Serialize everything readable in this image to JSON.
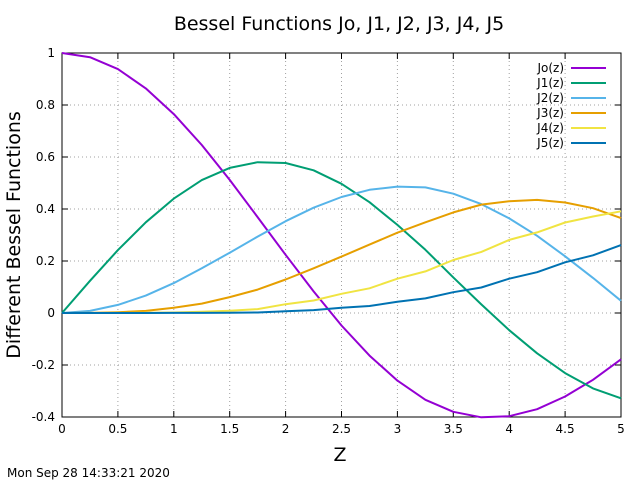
{
  "chart_data": {
    "type": "line",
    "title": "Bessel Functions Jo, J1, J2, J3, J4, J5",
    "xlabel": "Z",
    "ylabel": "Different Bessel Functions",
    "xlim": [
      0,
      5
    ],
    "ylim": [
      -0.4,
      1
    ],
    "x_ticks": [
      "0",
      "0.5",
      "1",
      "1.5",
      "2",
      "2.5",
      "3",
      "3.5",
      "4",
      "4.5",
      "5"
    ],
    "y_ticks": [
      "-0.4",
      "-0.2",
      "0",
      "0.2",
      "0.4",
      "0.6",
      "0.8",
      "1"
    ],
    "grid": true,
    "legend_position": "top-right",
    "x": [
      0,
      0.25,
      0.5,
      0.75,
      1,
      1.25,
      1.5,
      1.75,
      2,
      2.25,
      2.5,
      2.75,
      3,
      3.25,
      3.5,
      3.75,
      4,
      4.25,
      4.5,
      4.75,
      5
    ],
    "series": [
      {
        "name": "Jo(z)",
        "color": "#9400d3",
        "values": [
          1,
          0.984,
          0.938,
          0.864,
          0.765,
          0.646,
          0.512,
          0.369,
          0.224,
          0.083,
          -0.048,
          -0.164,
          -0.26,
          -0.334,
          -0.38,
          -0.401,
          -0.397,
          -0.37,
          -0.321,
          -0.257,
          -0.178
        ]
      },
      {
        "name": "J1(z)",
        "color": "#009e73",
        "values": [
          0,
          0.124,
          0.242,
          0.349,
          0.44,
          0.511,
          0.558,
          0.58,
          0.577,
          0.549,
          0.497,
          0.426,
          0.339,
          0.243,
          0.137,
          0.033,
          -0.066,
          -0.155,
          -0.231,
          -0.29,
          -0.328
        ]
      },
      {
        "name": "J2(z)",
        "color": "#56b4e9",
        "values": [
          0,
          0.008,
          0.031,
          0.067,
          0.115,
          0.172,
          0.232,
          0.294,
          0.353,
          0.405,
          0.446,
          0.474,
          0.486,
          0.483,
          0.459,
          0.419,
          0.364,
          0.297,
          0.218,
          0.135,
          0.047
        ]
      },
      {
        "name": "J3(z)",
        "color": "#e69f00",
        "values": [
          0,
          0.0003,
          0.003,
          0.008,
          0.02,
          0.036,
          0.061,
          0.09,
          0.129,
          0.172,
          0.217,
          0.263,
          0.309,
          0.349,
          0.387,
          0.417,
          0.43,
          0.435,
          0.425,
          0.403,
          0.365
        ]
      },
      {
        "name": "J4(z)",
        "color": "#f0e442",
        "values": [
          0,
          0,
          0.0002,
          0.001,
          0.002,
          0.005,
          0.009,
          0.015,
          0.034,
          0.048,
          0.074,
          0.095,
          0.132,
          0.16,
          0.204,
          0.235,
          0.281,
          0.31,
          0.348,
          0.371,
          0.391
        ]
      },
      {
        "name": "J5(z)",
        "color": "#0072b2",
        "values": [
          0,
          0,
          0,
          0.0001,
          0.0002,
          0.0005,
          0.001,
          0.002,
          0.007,
          0.011,
          0.02,
          0.027,
          0.043,
          0.056,
          0.08,
          0.098,
          0.132,
          0.157,
          0.195,
          0.222,
          0.261
        ]
      }
    ]
  },
  "timestamp": "Mon Sep 28 14:33:21 2020"
}
